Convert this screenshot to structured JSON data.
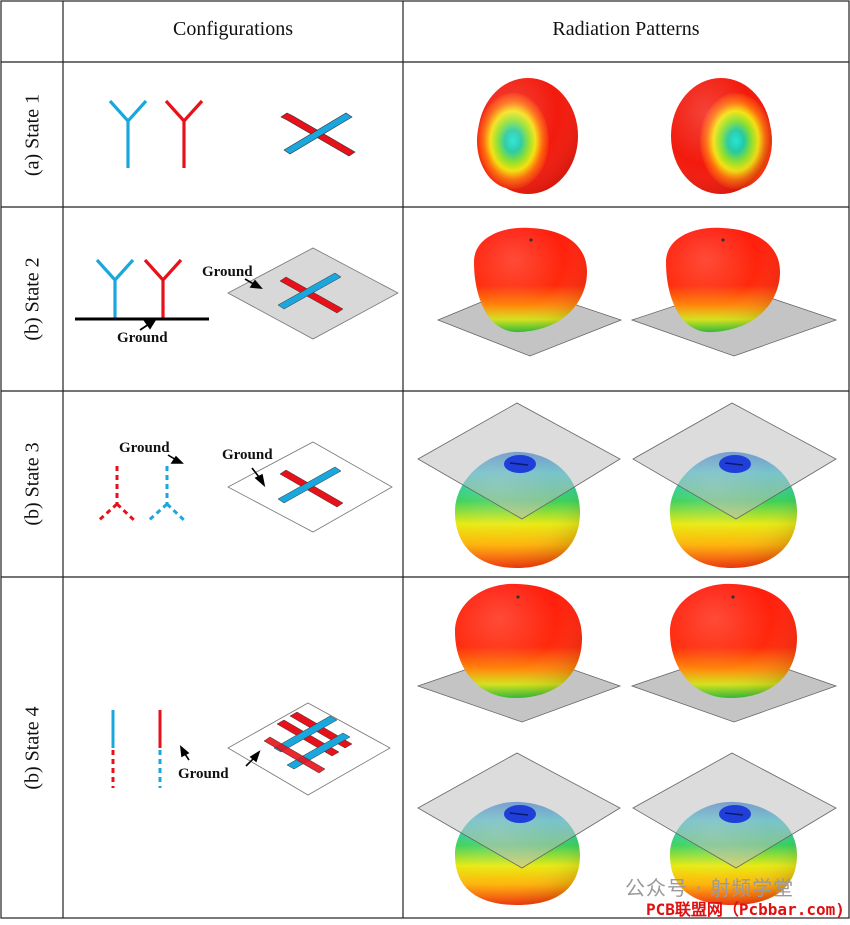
{
  "table": {
    "headers": {
      "configurations": "Configurations",
      "radiation_patterns": "Radiation Patterns"
    },
    "rows": [
      {
        "label": "(a) State 1"
      },
      {
        "label": "(b) State 2"
      },
      {
        "label": "(b) State 3"
      },
      {
        "label": "(b) State 4"
      }
    ]
  },
  "annotations": {
    "ground": "Ground"
  },
  "colors": {
    "blue": "#1aa7de",
    "red": "#e8111a",
    "plane": "#c8c8c8"
  },
  "watermark": {
    "line1": "公众号 · 射频学堂",
    "line2": "PCB联盟网（Pcbbar.com)"
  }
}
